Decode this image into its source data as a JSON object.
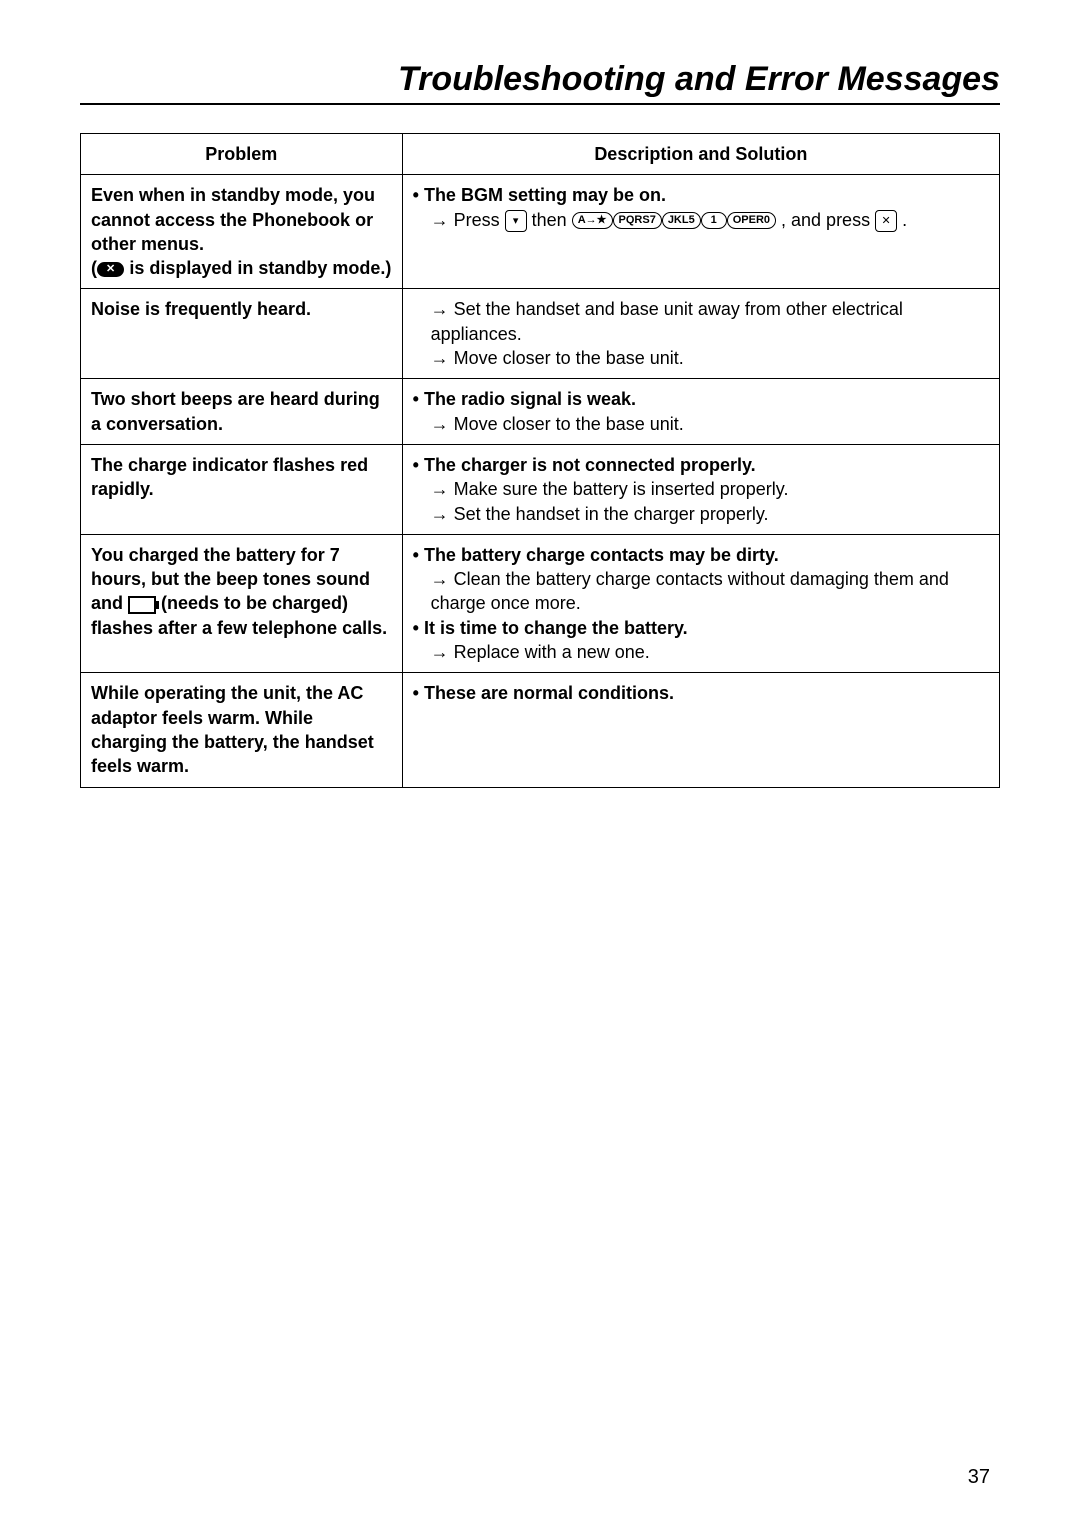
{
  "title": "Troubleshooting and Error Messages",
  "page_number": "37",
  "columns": {
    "problem": "Problem",
    "solution": "Description and Solution"
  },
  "rows": [
    {
      "problem_lines": [
        {
          "bold": true,
          "text": "Even when in standby mode, you cannot access the Phonebook or other menus."
        },
        {
          "bold": true,
          "prefix": "(",
          "icon": "standby-black-pill",
          "text": " is displayed in standby mode.)"
        }
      ],
      "solution_lines": [
        {
          "type": "bullet",
          "bold": true,
          "text": "The BGM setting may be on."
        },
        {
          "type": "arrow",
          "segments": [
            "Press ",
            {
              "icon": "nav"
            },
            " then ",
            {
              "pill": "A→★"
            },
            {
              "pill": "PQRS7"
            },
            {
              "pill": "JKL5"
            },
            {
              "pill": "1"
            },
            {
              "pill": "OPER0"
            },
            " , and press ",
            {
              "icon": "pwr"
            },
            " ."
          ]
        }
      ]
    },
    {
      "problem_lines": [
        {
          "bold": true,
          "text": "Noise is frequently heard."
        }
      ],
      "solution_lines": [
        {
          "type": "arrow",
          "text": "Set the handset and base unit away from other electrical appliances."
        },
        {
          "type": "arrow",
          "text": "Move closer to the base unit."
        }
      ]
    },
    {
      "problem_lines": [
        {
          "bold": true,
          "text": "Two short beeps are heard during a conversation."
        }
      ],
      "solution_lines": [
        {
          "type": "bullet",
          "bold": true,
          "text": "The radio signal is weak."
        },
        {
          "type": "arrow",
          "text": "Move closer to the base unit."
        }
      ]
    },
    {
      "problem_lines": [
        {
          "bold": true,
          "text": "The charge indicator flashes red rapidly."
        }
      ],
      "solution_lines": [
        {
          "type": "bullet",
          "bold": true,
          "text": "The charger is not connected properly."
        },
        {
          "type": "arrow",
          "text": "Make sure the battery is inserted properly."
        },
        {
          "type": "arrow",
          "text": "Set the handset in the charger properly."
        }
      ]
    },
    {
      "problem_lines": [
        {
          "bold": true,
          "segments": [
            "You charged the battery for 7 hours, but the beep tones sound and ",
            {
              "icon": "battery"
            },
            " (needs to be charged) flashes after a few telephone calls."
          ]
        }
      ],
      "solution_lines": [
        {
          "type": "bullet",
          "bold": true,
          "text": "The battery charge contacts may be dirty."
        },
        {
          "type": "arrow",
          "text": "Clean the battery charge contacts without damaging them and charge once more."
        },
        {
          "type": "bullet",
          "bold": true,
          "text": "It is time to change the battery."
        },
        {
          "type": "arrow",
          "text": "Replace with a new one."
        }
      ]
    },
    {
      "problem_lines": [
        {
          "bold": true,
          "text": "While operating the unit, the AC adaptor feels warm. While charging the battery, the handset feels warm."
        }
      ],
      "solution_lines": [
        {
          "type": "bullet",
          "bold": true,
          "text": "These are normal conditions."
        }
      ]
    }
  ]
}
